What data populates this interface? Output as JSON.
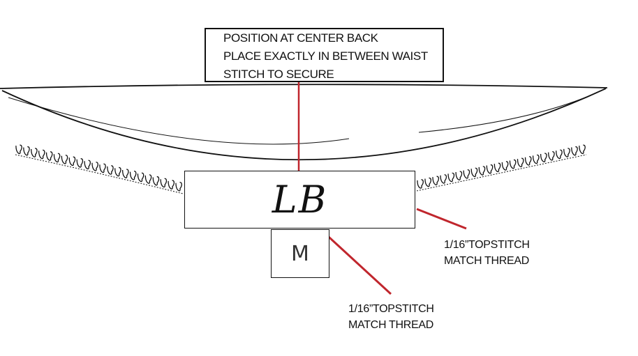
{
  "note": {
    "line1": "POSITION AT CENTER BACK",
    "line2": "PLACE EXACTLY IN BETWEEN WAIST",
    "line3": " STITCH TO SECURE"
  },
  "label": {
    "monogram": "LB"
  },
  "size_tag": {
    "letter": "M"
  },
  "callout_right": {
    "line1": "1/16”TOPSTITCH",
    "line2": "MATCH THREAD"
  },
  "callout_bottom": {
    "line1": "1/16”TOPSTITCH",
    "line2": "MATCH THREAD"
  },
  "colors": {
    "leader": "#c0262d",
    "ink": "#111111"
  }
}
